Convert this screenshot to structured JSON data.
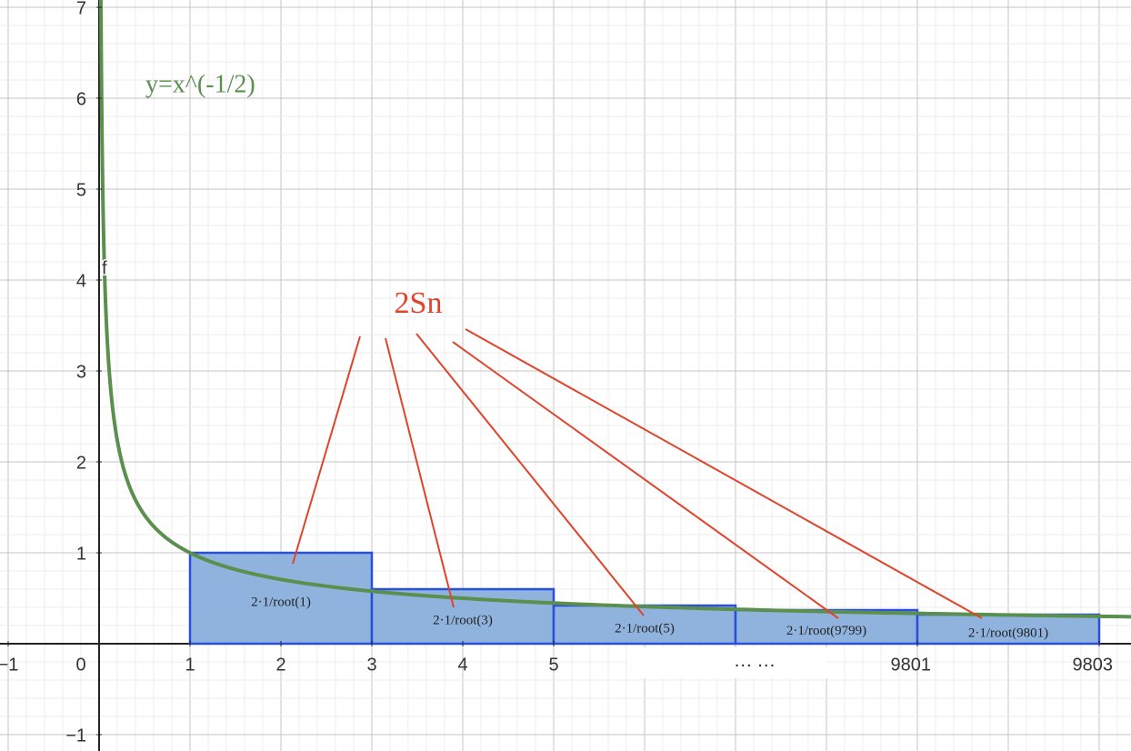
{
  "graph": {
    "xlim": [
      -1.09,
      11.35
    ],
    "ylim": [
      -1.18,
      7.08
    ],
    "xticks": [
      {
        "value": -1,
        "label": "−1"
      },
      0,
      1,
      2,
      3,
      4,
      5,
      {
        "value": 9,
        "label": "9801"
      },
      {
        "value": 11,
        "label": "9803"
      }
    ],
    "yticks": [
      {
        "value": -1,
        "label": "−1"
      },
      1,
      2,
      3,
      4,
      5,
      6,
      7
    ],
    "grid": true,
    "curve": {
      "label": "y=x^(-1/2)",
      "point_label": "f",
      "exponent": -0.5,
      "color": "#5a8f4e"
    },
    "rectangles": [
      {
        "x0": 1,
        "x1": 3,
        "height": 1,
        "label": "2·1/root(1)"
      },
      {
        "x0": 3,
        "x1": 5,
        "height": 0.6,
        "label": "2·1/root(3)"
      },
      {
        "x0": 5,
        "x1": 7,
        "height": 0.42,
        "label": "2·1/root(5)"
      },
      {
        "x0": 7,
        "x1": 9,
        "height": 0.37,
        "label": "2·1/root(9799)"
      },
      {
        "x0": 9,
        "x1": 11,
        "height": 0.32,
        "label": "2·1/root(9801)"
      }
    ],
    "rect_color": "#2a4fe0",
    "rect_fill": "#8aafdc",
    "annotation": "2Sn",
    "ellipsis": "··· ···"
  }
}
